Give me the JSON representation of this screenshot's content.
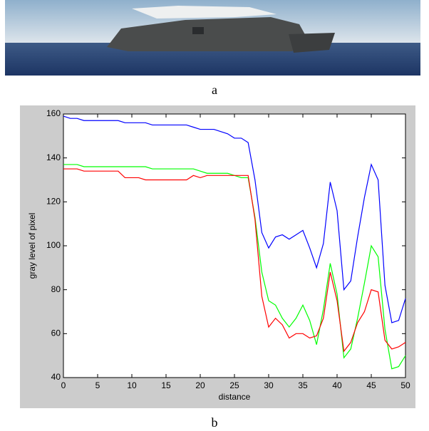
{
  "image": {
    "caption": "a"
  },
  "chart_data": {
    "type": "line",
    "caption": "b",
    "xlabel": "distance",
    "ylabel": "gray level of pixel",
    "x": [
      0,
      1,
      2,
      3,
      4,
      5,
      6,
      7,
      8,
      9,
      10,
      11,
      12,
      13,
      14,
      15,
      16,
      17,
      18,
      19,
      20,
      21,
      22,
      23,
      24,
      25,
      26,
      27,
      28,
      29,
      30,
      31,
      32,
      33,
      34,
      35,
      36,
      37,
      38,
      39,
      40,
      41,
      42,
      43,
      44,
      45,
      46,
      47,
      48,
      49,
      50
    ],
    "series": [
      {
        "color": "#0000ff",
        "values": [
          159,
          158,
          158,
          157,
          157,
          157,
          157,
          157,
          157,
          156,
          156,
          156,
          156,
          155,
          155,
          155,
          155,
          155,
          155,
          154,
          153,
          153,
          153,
          152,
          151,
          149,
          149,
          147,
          130,
          106,
          99,
          104,
          105,
          103,
          105,
          107,
          99,
          90,
          101,
          129,
          116,
          80,
          84,
          104,
          122,
          137,
          130,
          82,
          65,
          66,
          76
        ]
      },
      {
        "color": "#00ff00",
        "values": [
          137,
          137,
          137,
          136,
          136,
          136,
          136,
          136,
          136,
          136,
          136,
          136,
          136,
          135,
          135,
          135,
          135,
          135,
          135,
          135,
          134,
          133,
          133,
          133,
          133,
          132,
          131,
          131,
          113,
          88,
          75,
          73,
          67,
          63,
          67,
          73,
          66,
          55,
          71,
          92,
          78,
          49,
          53,
          67,
          83,
          100,
          95,
          62,
          44,
          45,
          50
        ]
      },
      {
        "color": "#ff0000",
        "values": [
          135,
          135,
          135,
          134,
          134,
          134,
          134,
          134,
          134,
          131,
          131,
          131,
          130,
          130,
          130,
          130,
          130,
          130,
          130,
          132,
          131,
          132,
          132,
          132,
          132,
          132,
          132,
          132,
          112,
          77,
          63,
          67,
          64,
          58,
          60,
          60,
          58,
          59,
          67,
          88,
          75,
          52,
          56,
          65,
          70,
          80,
          79,
          57,
          53,
          54,
          56
        ]
      }
    ],
    "xlim": [
      0,
      50
    ],
    "ylim": [
      40,
      160
    ],
    "xticks": [
      0,
      5,
      10,
      15,
      20,
      25,
      30,
      35,
      40,
      45,
      50
    ],
    "yticks": [
      40,
      60,
      80,
      100,
      120,
      140,
      160
    ]
  }
}
